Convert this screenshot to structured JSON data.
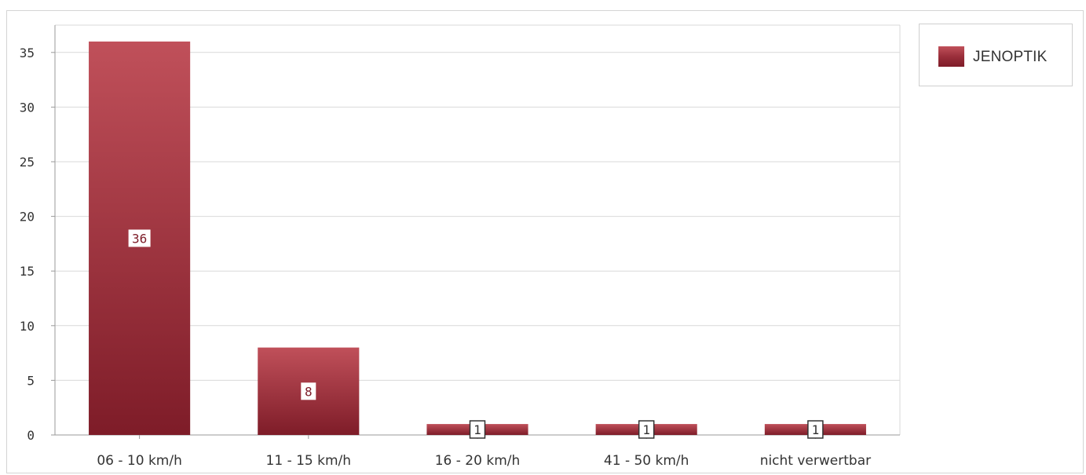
{
  "colors": {
    "bar_top": "#c0505a",
    "bar_bottom": "#7e1c28",
    "grid": "#d9d9d9",
    "axis_text": "#333333",
    "label_bg": "#ffffff"
  },
  "legend": {
    "label": "JENOPTIK",
    "position": "top-right"
  },
  "chart_data": {
    "type": "bar",
    "title": "",
    "xlabel": "",
    "ylabel": "",
    "categories": [
      "06 - 10 km/h",
      "11 - 15 km/h",
      "16 - 20 km/h",
      "41 - 50 km/h",
      "nicht verwertbar"
    ],
    "series": [
      {
        "name": "JENOPTIK",
        "values": [
          36,
          8,
          1,
          1,
          1
        ]
      }
    ],
    "data_labels": [
      "36",
      "8",
      "1",
      "1",
      "1"
    ],
    "ylim": [
      0,
      37.5
    ],
    "yticks": [
      0,
      5,
      10,
      15,
      20,
      25,
      30,
      35
    ],
    "ytick_labels": [
      "0",
      "5",
      "10",
      "15",
      "20",
      "25",
      "30",
      "35"
    ],
    "grid": true,
    "legend_position": "top-right"
  }
}
